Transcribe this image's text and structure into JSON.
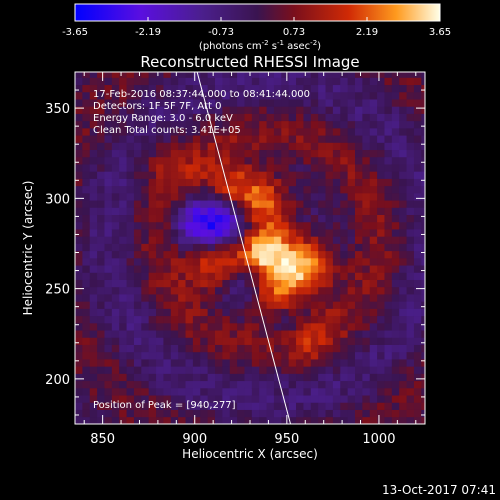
{
  "chart_data": {
    "type": "heatmap",
    "title": "Reconstructed RHESSI Image",
    "xlabel": "Heliocentric X (arcsec)",
    "ylabel": "Heliocentric Y (arcsec)",
    "xlim": [
      835,
      1025
    ],
    "ylim": [
      175,
      370
    ],
    "x_ticks": [
      850,
      900,
      950,
      1000
    ],
    "y_ticks": [
      200,
      250,
      300,
      350
    ],
    "colorbar": {
      "range": [
        -3.65,
        3.65
      ],
      "ticks": [
        "-3.65",
        "-2.19",
        "-0.73",
        "0.73",
        "2.19",
        "3.65"
      ],
      "units": "(photons cm",
      "units_exp1": "-2",
      "units_mid": " s",
      "units_exp2": "-1",
      "units_mid2": " asec",
      "units_exp3": "-2",
      "units_end": ")",
      "colors": [
        "#0000ff",
        "#5a0fe0",
        "#4b1f8c",
        "#3a1450",
        "#7a0f1c",
        "#d02a05",
        "#ff9a1e",
        "#ffffe8"
      ]
    },
    "annotations": {
      "line1": "17-Feb-2016 08:37:44.000 to 08:41:44.000",
      "line2": "Detectors: 1F 5F 7F, Att 0",
      "line3": "Energy Range: 3.0 - 6.0 keV",
      "line4": "Clean      Total counts: 3.41E+05",
      "peak": "Position of Peak = [940,277]"
    },
    "peak": [
      940,
      277
    ],
    "limb_line": [
      [
        900,
        375
      ],
      [
        952,
        175
      ]
    ],
    "sources": [
      {
        "x": 917,
        "y": 305,
        "value": 2.0
      },
      {
        "x": 935,
        "y": 298,
        "value": 2.6
      },
      {
        "x": 912,
        "y": 265,
        "value": 2.8
      },
      {
        "x": 935,
        "y": 270,
        "value": 3.65
      },
      {
        "x": 960,
        "y": 262,
        "value": 3.0
      },
      {
        "x": 943,
        "y": 246,
        "value": 2.8
      },
      {
        "x": 960,
        "y": 225,
        "value": 1.8
      },
      {
        "x": 885,
        "y": 318,
        "value": 0.8
      },
      {
        "x": 905,
        "y": 287,
        "value": -2.8
      },
      {
        "x": 922,
        "y": 285,
        "value": -2.5
      },
      {
        "x": 928,
        "y": 256,
        "value": -2.3
      },
      {
        "x": 952,
        "y": 232,
        "value": -2.0
      }
    ]
  },
  "footer": {
    "timestamp": "13-Oct-2017 07:41"
  }
}
